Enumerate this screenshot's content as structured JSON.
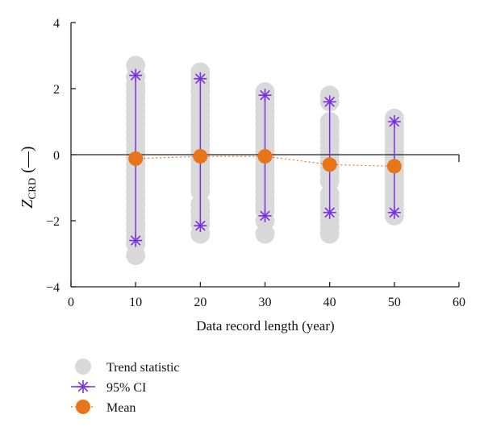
{
  "chart_data": {
    "type": "scatter",
    "ylabel_main": "Z",
    "ylabel_sub": "CRD",
    "ylabel_unit": "(—)",
    "xlabel": "Data record length (year)",
    "xlim": [
      0,
      60
    ],
    "ylim": [
      -4,
      4
    ],
    "xticks": [
      "0",
      "10",
      "20",
      "30",
      "40",
      "50",
      "60"
    ],
    "yticks": [
      "−4",
      "−2",
      "0",
      "2",
      "4"
    ],
    "trend_statistic": [
      {
        "x": 10,
        "y": [
          2.7,
          2.35,
          2.1,
          1.9,
          1.7,
          1.5,
          1.3,
          1.1,
          0.9,
          0.7,
          0.5,
          0.3,
          0.1,
          -0.1,
          -0.3,
          -0.5,
          -0.7,
          -0.9,
          -1.1,
          -1.3,
          -1.5,
          -1.7,
          -1.9,
          -2.1,
          -2.3,
          -2.5,
          -2.7,
          -3.05
        ]
      },
      {
        "x": 20,
        "y": [
          2.5,
          2.3,
          2.1,
          1.9,
          1.7,
          1.5,
          1.3,
          1.1,
          0.9,
          0.7,
          0.5,
          0.3,
          0.1,
          -0.1,
          -0.3,
          -0.5,
          -0.7,
          -0.9,
          -1.1,
          -1.5,
          -1.7,
          -1.9,
          -2.1,
          -2.4
        ]
      },
      {
        "x": 30,
        "y": [
          1.9,
          1.7,
          1.5,
          1.3,
          1.1,
          0.9,
          0.7,
          0.5,
          0.3,
          0.1,
          -0.1,
          -0.3,
          -0.5,
          -0.7,
          -0.9,
          -1.1,
          -1.3,
          -1.5,
          -1.7,
          -2.0,
          -2.4
        ]
      },
      {
        "x": 40,
        "y": [
          1.8,
          1.6,
          1.0,
          0.8,
          0.6,
          0.4,
          0.2,
          0.0,
          -0.2,
          -0.4,
          -0.6,
          -0.8,
          -1.2,
          -1.4,
          -1.6,
          -1.8,
          -2.0,
          -2.2,
          -2.4
        ]
      },
      {
        "x": 50,
        "y": [
          1.1,
          0.9,
          0.7,
          0.5,
          0.3,
          0.1,
          -0.1,
          -0.3,
          -0.5,
          -0.7,
          -0.9,
          -1.1,
          -1.3,
          -1.5,
          -1.7,
          -1.85
        ]
      }
    ],
    "ci_95": [
      {
        "x": 10,
        "low": -2.6,
        "high": 2.4
      },
      {
        "x": 20,
        "low": -2.15,
        "high": 2.3
      },
      {
        "x": 30,
        "low": -1.85,
        "high": 1.8
      },
      {
        "x": 40,
        "low": -1.75,
        "high": 1.6
      },
      {
        "x": 50,
        "low": -1.75,
        "high": 1.0
      }
    ],
    "mean": [
      {
        "x": 10,
        "y": -0.12
      },
      {
        "x": 20,
        "y": -0.05
      },
      {
        "x": 30,
        "y": -0.05
      },
      {
        "x": 40,
        "y": -0.3
      },
      {
        "x": 50,
        "y": -0.35
      }
    ],
    "legend": {
      "placement": "bottom-left",
      "items": [
        "Trend statistic",
        "95% CI",
        "Mean"
      ]
    },
    "colors": {
      "trend": "#d9d9d9",
      "ci": "#7a2fe0",
      "mean": "#e8751a",
      "axis": "#222222"
    }
  }
}
